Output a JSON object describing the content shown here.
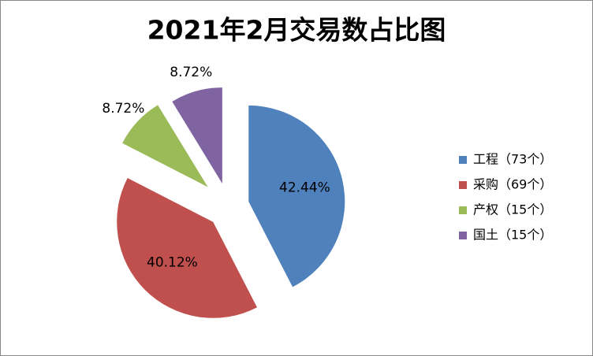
{
  "chart_data": {
    "type": "pie",
    "title": "2021年2月交易数占比图",
    "categories": [
      "工程（73个）",
      "采购（69个）",
      "产权（15个）",
      "国土（15个）"
    ],
    "values": [
      42.44,
      40.12,
      8.72,
      8.72
    ],
    "value_labels": [
      "42.44%",
      "40.12%",
      "8.72%",
      "8.72%"
    ],
    "colors": [
      "#4f81bd",
      "#c0504d",
      "#9bbb59",
      "#8064a2"
    ],
    "legend": "right"
  }
}
